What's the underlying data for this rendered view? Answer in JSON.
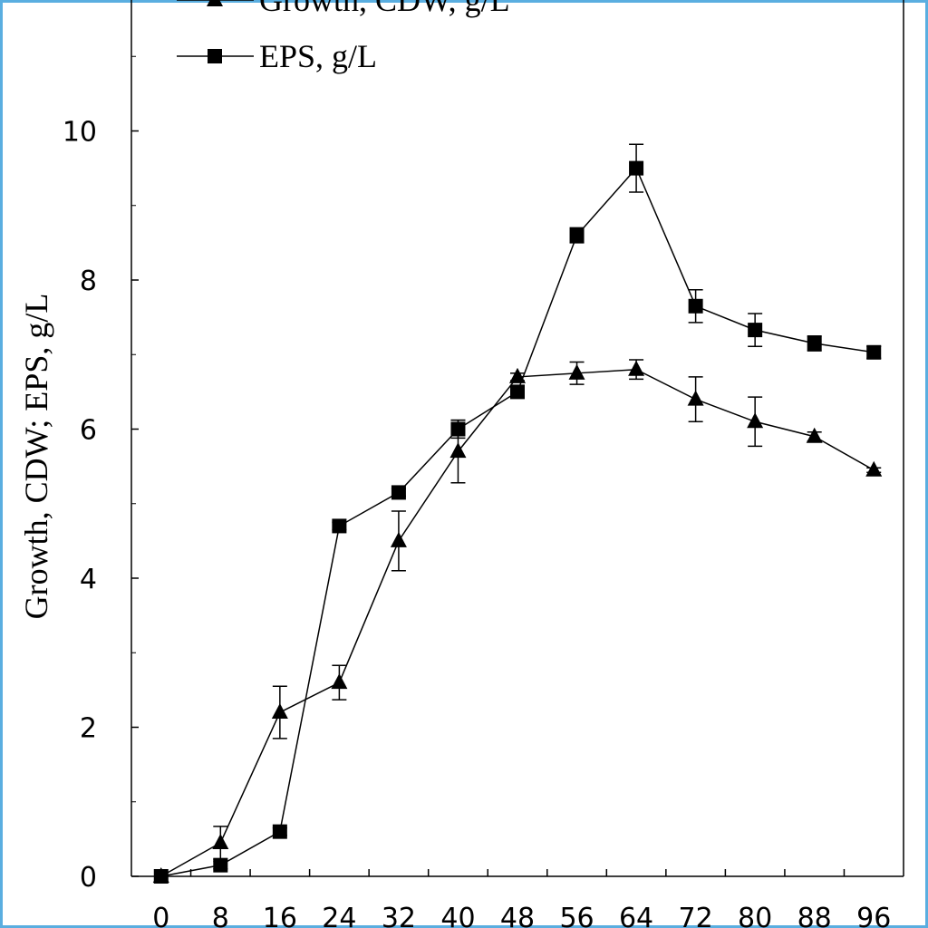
{
  "chart_data": {
    "type": "line",
    "title": "",
    "xlabel": "",
    "ylabel": "Growth, CDW; EPS, g/L",
    "xlim": [
      -4,
      100
    ],
    "ylim": [
      0,
      12
    ],
    "x_ticks": [
      "0",
      "8",
      "16",
      "24",
      "32",
      "40",
      "48",
      "56",
      "64",
      "72",
      "80",
      "88",
      "96"
    ],
    "y_ticks": [
      "0",
      "2",
      "4",
      "6",
      "8",
      "10"
    ],
    "grid": false,
    "legend_position": "top-left",
    "x": [
      0,
      8,
      16,
      24,
      32,
      40,
      48,
      56,
      64,
      72,
      80,
      88,
      96
    ],
    "series": [
      {
        "name": "Growth, CDW, g/L",
        "marker": "triangle",
        "values": [
          0,
          0.45,
          2.2,
          2.6,
          4.5,
          5.7,
          6.7,
          6.75,
          6.8,
          6.4,
          6.1,
          5.9,
          5.45
        ],
        "errors": [
          0,
          0.22,
          0.35,
          0.23,
          0.4,
          0.42,
          0.05,
          0.15,
          0.13,
          0.3,
          0.33,
          0.06,
          0.03
        ]
      },
      {
        "name": "EPS, g/L",
        "marker": "square",
        "values": [
          0,
          0.15,
          0.6,
          4.7,
          5.15,
          6.0,
          6.5,
          8.6,
          9.5,
          7.65,
          7.33,
          7.15,
          7.03
        ],
        "errors": [
          0,
          0.05,
          0.05,
          0.05,
          0.05,
          0.12,
          0.05,
          0.1,
          0.32,
          0.22,
          0.22,
          0.1,
          0.08
        ]
      }
    ],
    "colors": {
      "line": "#000000",
      "frame": "#5aaee0"
    }
  }
}
